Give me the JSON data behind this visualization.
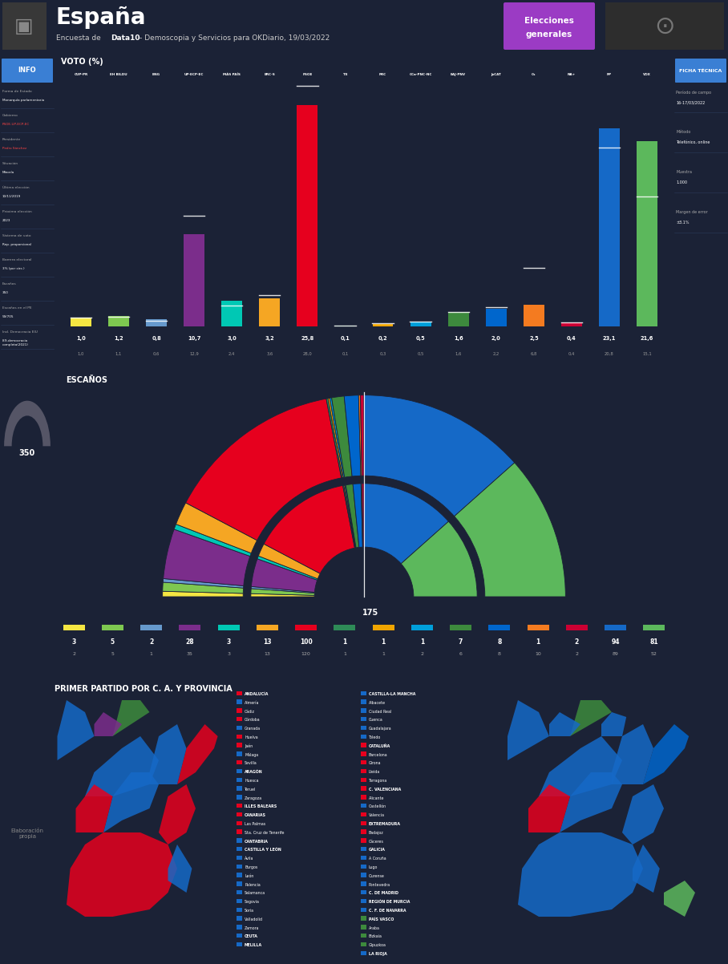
{
  "title": "España",
  "subtitle_plain": "Encuesta de ",
  "subtitle_bold": "Data10",
  "subtitle_rest": " – Demoscopia y Servicios para OKDiario, 19/03/2022",
  "bg_color": "#1b2236",
  "header_bg": "#252525",
  "section_bg": "#1b2236",
  "vote_section_bg": "#16213a",
  "seats_section_bg": "#16213a",
  "map_section_bg": "#16213a",
  "blue_accent": "#3a7fd4",
  "parties": [
    {
      "name": "CUP-PR",
      "abbr": "CUP-PR",
      "color": "#f5e642",
      "vote": 1.0,
      "prev_vote": 1.0,
      "seats": 3,
      "prev_seats": 2
    },
    {
      "name": "EH BILDU",
      "abbr": "EH BILDU",
      "color": "#7ec850",
      "vote": 1.2,
      "prev_vote": 1.1,
      "seats": 5,
      "prev_seats": 5
    },
    {
      "name": "BNG",
      "abbr": "BNG",
      "color": "#6699cc",
      "vote": 0.8,
      "prev_vote": 0.6,
      "seats": 2,
      "prev_seats": 1
    },
    {
      "name": "UP-ECP-EC",
      "abbr": "UP-ECP-EC",
      "color": "#7b2d8b",
      "vote": 10.7,
      "prev_vote": 12.9,
      "seats": 28,
      "prev_seats": 35
    },
    {
      "name": "MAS PAIS",
      "abbr": "MÁS PAÍS",
      "color": "#00c8b4",
      "vote": 3.0,
      "prev_vote": 2.4,
      "seats": 3,
      "prev_seats": 3
    },
    {
      "name": "ERC-S",
      "abbr": "ERC-S",
      "color": "#f5a623",
      "vote": 3.2,
      "prev_vote": 3.6,
      "seats": 13,
      "prev_seats": 13
    },
    {
      "name": "PSOE",
      "abbr": "PSOE",
      "color": "#e6001e",
      "vote": 25.8,
      "prev_vote": 28.0,
      "seats": 100,
      "prev_seats": 120
    },
    {
      "name": "TE",
      "abbr": "TE",
      "color": "#2e8b57",
      "vote": 0.1,
      "prev_vote": 0.1,
      "seats": 1,
      "prev_seats": 1
    },
    {
      "name": "PRC",
      "abbr": "PRC",
      "color": "#f0a500",
      "vote": 0.2,
      "prev_vote": 0.3,
      "seats": 1,
      "prev_seats": 1
    },
    {
      "name": "CCa-PNC-NC",
      "abbr": "CCa-PNC-NC",
      "color": "#009fda",
      "vote": 0.5,
      "prev_vote": 0.5,
      "seats": 1,
      "prev_seats": 2
    },
    {
      "name": "EAJ-PNV",
      "abbr": "EAJ-PNV",
      "color": "#3d8a3d",
      "vote": 1.6,
      "prev_vote": 1.6,
      "seats": 7,
      "prev_seats": 6
    },
    {
      "name": "JxCAT",
      "abbr": "JxCAT",
      "color": "#0066cc",
      "vote": 2.0,
      "prev_vote": 2.2,
      "seats": 8,
      "prev_seats": 8
    },
    {
      "name": "Cs",
      "abbr": "Cs",
      "color": "#f47b20",
      "vote": 2.5,
      "prev_vote": 6.8,
      "seats": 1,
      "prev_seats": 10
    },
    {
      "name": "NA+",
      "abbr": "NA+",
      "color": "#cc0033",
      "vote": 0.4,
      "prev_vote": 0.4,
      "seats": 2,
      "prev_seats": 2
    },
    {
      "name": "PP",
      "abbr": "PP",
      "color": "#1569c7",
      "vote": 23.1,
      "prev_vote": 20.8,
      "seats": 94,
      "prev_seats": 89
    },
    {
      "name": "VOX",
      "abbr": "VOX",
      "color": "#5cb85c",
      "vote": 21.6,
      "prev_vote": 15.1,
      "seats": 81,
      "prev_seats": 52
    }
  ],
  "seat_data": [
    {
      "party": "CUP-PR",
      "color": "#f5e642",
      "seats": 3,
      "prev_seats": 2
    },
    {
      "party": "EH BILDU",
      "color": "#7ec850",
      "seats": 5,
      "prev_seats": 5
    },
    {
      "party": "BNG",
      "color": "#6699cc",
      "seats": 2,
      "prev_seats": 1
    },
    {
      "party": "UP-ECP-EC",
      "color": "#7b2d8b",
      "seats": 28,
      "prev_seats": 35
    },
    {
      "party": "MAS PAIS",
      "color": "#00c8b4",
      "seats": 3,
      "prev_seats": 3
    },
    {
      "party": "ERC-S",
      "color": "#f5a623",
      "seats": 13,
      "prev_seats": 13
    },
    {
      "party": "PSOE",
      "color": "#e6001e",
      "seats": 100,
      "prev_seats": 120
    },
    {
      "party": "TE",
      "color": "#2e8b57",
      "seats": 1,
      "prev_seats": 1
    },
    {
      "party": "PRC",
      "color": "#f0a500",
      "seats": 1,
      "prev_seats": 1
    },
    {
      "party": "CCa-PNC-NC",
      "color": "#009fda",
      "seats": 1,
      "prev_seats": 2
    },
    {
      "party": "EAJ-PNV",
      "color": "#3d8a3d",
      "seats": 7,
      "prev_seats": 6
    },
    {
      "party": "JxCAT",
      "color": "#0066cc",
      "seats": 8,
      "prev_seats": 8
    },
    {
      "party": "Cs",
      "color": "#f47b20",
      "seats": 1,
      "prev_seats": 10
    },
    {
      "party": "NA+",
      "color": "#cc0033",
      "seats": 2,
      "prev_seats": 2
    },
    {
      "party": "PP",
      "color": "#1569c7",
      "seats": 94,
      "prev_seats": 89
    },
    {
      "party": "VOX",
      "color": "#5cb85c",
      "seats": 81,
      "prev_seats": 52
    }
  ],
  "all_provinces_left": [
    [
      "ANDALUCÍA",
      "#e6001e",
      true
    ],
    [
      "Almería",
      "#1569c7",
      false
    ],
    [
      "Cádiz",
      "#e6001e",
      false
    ],
    [
      "Córdoba",
      "#e6001e",
      false
    ],
    [
      "Granada",
      "#1569c7",
      false
    ],
    [
      "Huelva",
      "#e6001e",
      false
    ],
    [
      "Jaén",
      "#e6001e",
      false
    ],
    [
      "Málaga",
      "#1569c7",
      false
    ],
    [
      "Sevilla",
      "#e6001e",
      false
    ],
    [
      "ARAGÓN",
      "#1569c7",
      true
    ],
    [
      "Huesca",
      "#1569c7",
      false
    ],
    [
      "Teruel",
      "#1569c7",
      false
    ],
    [
      "Zaragoza",
      "#1569c7",
      false
    ],
    [
      "ILLES BALEARS",
      "#e6001e",
      true
    ],
    [
      "CANARIAS",
      "#e6001e",
      true
    ],
    [
      "Las Palmas",
      "#e6001e",
      false
    ],
    [
      "Sta. Cruz de Tenerife",
      "#e6001e",
      false
    ],
    [
      "CANTABRIA",
      "#1569c7",
      true
    ],
    [
      "CASTILLA Y LEÓN",
      "#1569c7",
      true
    ],
    [
      "Ávila",
      "#1569c7",
      false
    ],
    [
      "Burgos",
      "#1569c7",
      false
    ],
    [
      "León",
      "#1569c7",
      false
    ],
    [
      "Palencia",
      "#1569c7",
      false
    ],
    [
      "Salamanca",
      "#1569c7",
      false
    ],
    [
      "Segovia",
      "#1569c7",
      false
    ],
    [
      "Soria",
      "#1569c7",
      false
    ],
    [
      "Valladolid",
      "#1569c7",
      false
    ],
    [
      "Zamora",
      "#1569c7",
      false
    ],
    [
      "CEUTA",
      "#1569c7",
      true
    ],
    [
      "MELILLA",
      "#1569c7",
      true
    ]
  ],
  "all_provinces_right": [
    [
      "CASTILLA-LA MANCHA",
      "#1569c7",
      true
    ],
    [
      "Albacete",
      "#1569c7",
      false
    ],
    [
      "Ciudad Real",
      "#1569c7",
      false
    ],
    [
      "Cuenca",
      "#1569c7",
      false
    ],
    [
      "Guadalajara",
      "#1569c7",
      false
    ],
    [
      "Toledo",
      "#1569c7",
      false
    ],
    [
      "CATALUÑA",
      "#e6001e",
      true
    ],
    [
      "Barcelona",
      "#e6001e",
      false
    ],
    [
      "Girona",
      "#e6001e",
      false
    ],
    [
      "Lleida",
      "#e6001e",
      false
    ],
    [
      "Tarragona",
      "#e6001e",
      false
    ],
    [
      "C. VALENCIANA",
      "#e6001e",
      true
    ],
    [
      "Alicante",
      "#e6001e",
      false
    ],
    [
      "Castellón",
      "#1569c7",
      false
    ],
    [
      "Valencia",
      "#e6001e",
      false
    ],
    [
      "EXTREMADURA",
      "#e6001e",
      true
    ],
    [
      "Badajoz",
      "#e6001e",
      false
    ],
    [
      "Cáceres",
      "#e6001e",
      false
    ],
    [
      "GALICIA",
      "#1569c7",
      true
    ],
    [
      "A Coruña",
      "#1569c7",
      false
    ],
    [
      "Lugo",
      "#1569c7",
      false
    ],
    [
      "Ourense",
      "#1569c7",
      false
    ],
    [
      "Pontevedra",
      "#1569c7",
      false
    ],
    [
      "C. DE MADRID",
      "#1569c7",
      true
    ],
    [
      "REGIÓN DE MURCIA",
      "#1569c7",
      true
    ],
    [
      "C. F. DE NAVARRA",
      "#1569c7",
      true
    ],
    [
      "PAÍS VASCO",
      "#3d8a3d",
      true
    ],
    [
      "Araba",
      "#3d8a3d",
      false
    ],
    [
      "Bizkaia",
      "#3d8a3d",
      false
    ],
    [
      "Gipuzkoa",
      "#3d8a3d",
      false
    ],
    [
      "LA RIOJA",
      "#1569c7",
      true
    ]
  ]
}
